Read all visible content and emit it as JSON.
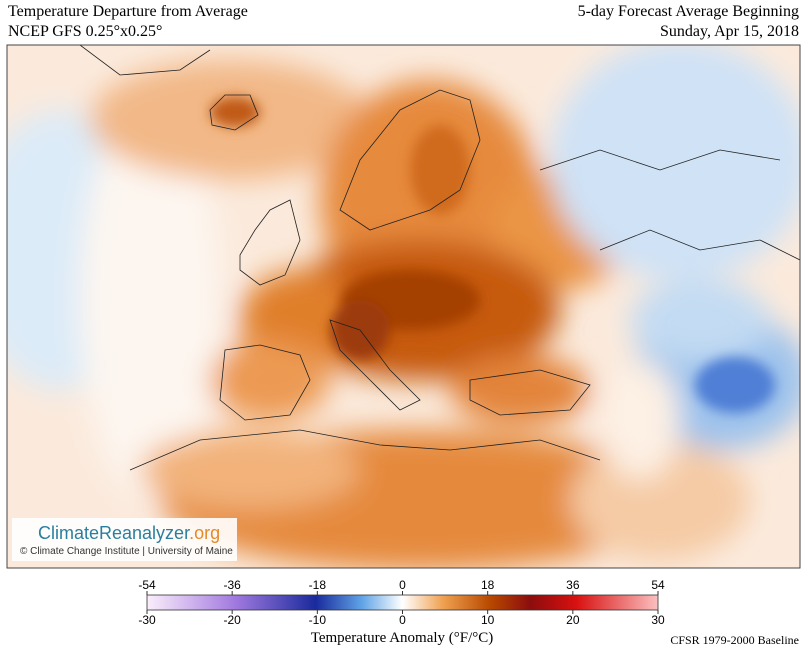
{
  "header": {
    "title_left": "Temperature Departure from Average",
    "subtitle_left": "NCEP GFS 0.25°x0.25°",
    "title_right": "5-day Forecast Average Beginning",
    "date_right": "Sunday, Apr 15, 2018"
  },
  "logo": {
    "name_a": "ClimateReanalyzer",
    "name_b": ".org",
    "credit": "© Climate Change Institute | University of Maine"
  },
  "colorbar": {
    "f_range": [
      -54,
      54
    ],
    "f_ticks": [
      -54,
      -36,
      -18,
      0,
      18,
      36,
      54
    ],
    "c_range": [
      -30,
      30
    ],
    "c_ticks": [
      -30,
      -20,
      -10,
      0,
      10,
      20,
      30
    ],
    "label": "Temperature Anomaly (°F/°C)"
  },
  "footer": {
    "baseline": "CFSR 1979-2000 Baseline"
  }
}
